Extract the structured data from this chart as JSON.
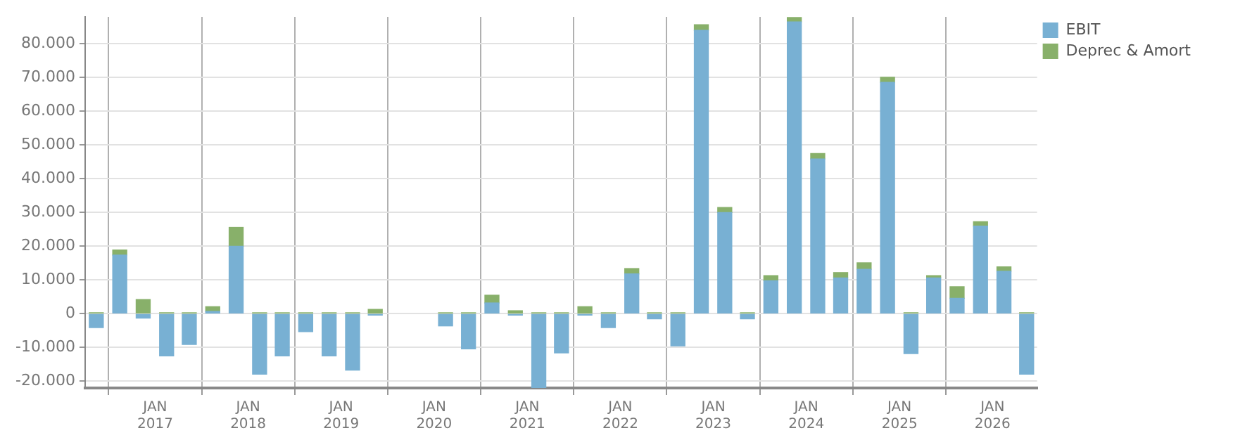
{
  "chart_data": {
    "type": "bar",
    "stacked": true,
    "x": [
      "2016-05-15",
      "2016-08-15",
      "2016-11-15",
      "2017-02-15",
      "2017-05-15",
      "2017-08-15",
      "2017-11-15",
      "2018-02-15",
      "2018-05-15",
      "2018-08-15",
      "2018-11-15",
      "2019-02-15",
      "2019-05-15",
      "2019-08-15",
      "2019-11-15",
      "2020-02-15",
      "2020-05-15",
      "2020-08-15",
      "2020-11-15",
      "2021-02-15",
      "2021-05-15",
      "2021-08-15",
      "2021-11-15",
      "2022-02-15",
      "2022-05-15",
      "2022-08-15",
      "2022-11-15",
      "2023-02-15",
      "2023-05-15",
      "2023-08-15",
      "2023-11-15",
      "2024-02-15",
      "2024-05-15",
      "2024-08-15",
      "2024-11-15",
      "2025-02-15",
      "2025-05-15",
      "2025-08-15",
      "2025-11-15",
      "2026-02-15",
      "2026-05-15"
    ],
    "series": [
      {
        "name": "EBIT",
        "color": "#78b0d3",
        "values": [
          -4100,
          17400,
          -1300,
          -12500,
          -9100,
          700,
          20000,
          -17900,
          -12500,
          -5300,
          -12500,
          -16700,
          -400,
          null,
          null,
          -3600,
          -10400,
          3200,
          -400,
          -22000,
          -11600,
          -400,
          -4100,
          11800,
          -1500,
          -9500,
          84000,
          30000,
          -1500,
          9800,
          86500,
          45900,
          10600,
          13200,
          68600,
          -11800,
          10600,
          4600,
          26000,
          12600,
          -17900
        ]
      },
      {
        "name": "Deprec & Amort",
        "color": "#88b06a",
        "values": [
          300,
          1500,
          4200,
          300,
          300,
          1400,
          5600,
          300,
          300,
          300,
          300,
          300,
          1300,
          null,
          null,
          300,
          300,
          2300,
          900,
          300,
          300,
          2100,
          300,
          1600,
          300,
          300,
          1700,
          1500,
          300,
          1500,
          1300,
          1600,
          1600,
          1900,
          1500,
          300,
          700,
          3400,
          1300,
          1300,
          300
        ]
      }
    ],
    "xlim": [
      "2016-04-01",
      "2026-06-25"
    ],
    "xticks": [
      {
        "value": "2017-01-01",
        "label": "JAN\n2017"
      },
      {
        "value": "2018-01-01",
        "label": "JAN\n2018"
      },
      {
        "value": "2019-01-01",
        "label": "JAN\n2019"
      },
      {
        "value": "2020-01-01",
        "label": "JAN\n2020"
      },
      {
        "value": "2021-01-01",
        "label": "JAN\n2021"
      },
      {
        "value": "2022-01-01",
        "label": "JAN\n2022"
      },
      {
        "value": "2023-01-01",
        "label": "JAN\n2023"
      },
      {
        "value": "2024-01-01",
        "label": "JAN\n2024"
      },
      {
        "value": "2025-01-01",
        "label": "JAN\n2025"
      },
      {
        "value": "2026-01-01",
        "label": "JAN\n2026"
      }
    ],
    "ylim": [
      -22000,
      88000
    ],
    "yticks": [
      {
        "value": -20000,
        "label": "-20.000"
      },
      {
        "value": -10000,
        "label": "-10.000"
      },
      0,
      {
        "value": 10000,
        "label": "10.000"
      },
      {
        "value": 20000,
        "label": "20.000"
      },
      {
        "value": 30000,
        "label": "30.000"
      },
      {
        "value": 40000,
        "label": "40.000"
      },
      {
        "value": 50000,
        "label": "50.000"
      },
      {
        "value": 60000,
        "label": "60.000"
      },
      {
        "value": 70000,
        "label": "70.000"
      },
      {
        "value": 80000,
        "label": "80.000"
      }
    ],
    "grid": true,
    "legend": "top right"
  }
}
